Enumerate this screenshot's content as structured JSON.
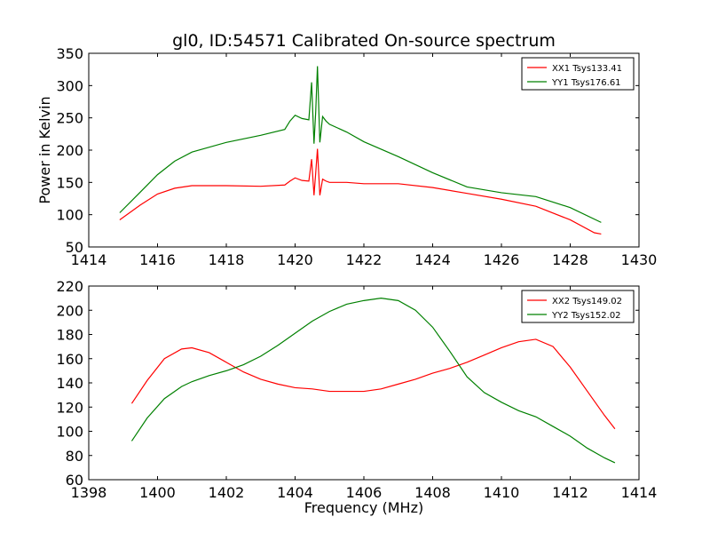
{
  "figure": {
    "title": "gl0, ID:54571 Calibrated On-source spectrum",
    "ylabel": "Power in Kelvin",
    "xlabel": "Frequency (MHz)"
  },
  "colors": {
    "red": "#ff0000",
    "green": "#008000"
  },
  "chart_data": [
    {
      "type": "line",
      "title": "gl0, ID:54571 Calibrated On-source spectrum",
      "xlabel": "",
      "ylabel": "Power in Kelvin",
      "xlim": [
        1414,
        1430
      ],
      "ylim": [
        50,
        350
      ],
      "xticks": [
        1414,
        1416,
        1418,
        1420,
        1422,
        1424,
        1426,
        1428,
        1430
      ],
      "yticks": [
        50,
        100,
        150,
        200,
        250,
        300,
        350
      ],
      "grid": false,
      "legend": "top-right",
      "series": [
        {
          "name": "XX1 Tsys133.41",
          "color": "red",
          "x": [
            1414.9,
            1415.5,
            1416.0,
            1416.5,
            1417.0,
            1418.0,
            1419.0,
            1419.7,
            1419.85,
            1420.0,
            1420.2,
            1420.4,
            1420.48,
            1420.55,
            1420.6,
            1420.65,
            1420.72,
            1420.8,
            1420.9,
            1421.0,
            1421.5,
            1422.0,
            1423.0,
            1424.0,
            1425.0,
            1426.0,
            1427.0,
            1428.0,
            1428.7,
            1428.9
          ],
          "y": [
            92,
            115,
            132,
            141,
            145,
            145,
            144,
            146,
            152,
            157,
            153,
            152,
            186,
            130,
            165,
            202,
            130,
            155,
            152,
            150,
            150,
            148,
            148,
            142,
            133,
            124,
            113,
            92,
            72,
            70
          ]
        },
        {
          "name": "YY1 Tsys176.61",
          "color": "green",
          "x": [
            1414.9,
            1415.5,
            1416.0,
            1416.5,
            1417.0,
            1418.0,
            1419.0,
            1419.7,
            1419.85,
            1420.0,
            1420.2,
            1420.4,
            1420.48,
            1420.55,
            1420.6,
            1420.65,
            1420.72,
            1420.8,
            1420.9,
            1421.0,
            1421.5,
            1422.0,
            1423.0,
            1424.0,
            1425.0,
            1426.0,
            1427.0,
            1428.0,
            1428.9
          ],
          "y": [
            103,
            135,
            162,
            183,
            197,
            212,
            223,
            232,
            245,
            254,
            249,
            247,
            305,
            210,
            260,
            330,
            212,
            252,
            245,
            240,
            228,
            213,
            190,
            165,
            143,
            134,
            128,
            111,
            88
          ]
        }
      ]
    },
    {
      "type": "line",
      "title": "",
      "xlabel": "Frequency (MHz)",
      "ylabel": "",
      "xlim": [
        1398,
        1414
      ],
      "ylim": [
        60,
        220
      ],
      "xticks": [
        1398,
        1400,
        1402,
        1404,
        1406,
        1408,
        1410,
        1412,
        1414
      ],
      "yticks": [
        60,
        80,
        100,
        120,
        140,
        160,
        180,
        200,
        220
      ],
      "grid": false,
      "legend": "top-right",
      "series": [
        {
          "name": "XX2 Tsys149.02",
          "color": "red",
          "x": [
            1399.25,
            1399.7,
            1400.2,
            1400.7,
            1401.0,
            1401.5,
            1402.0,
            1402.5,
            1403.0,
            1403.5,
            1404.0,
            1404.5,
            1405.0,
            1405.5,
            1406.0,
            1406.5,
            1407.0,
            1407.5,
            1408.0,
            1408.5,
            1409.0,
            1409.5,
            1410.0,
            1410.5,
            1411.0,
            1411.5,
            1412.0,
            1412.5,
            1413.0,
            1413.3
          ],
          "y": [
            123,
            142,
            160,
            168,
            169,
            165,
            157,
            149,
            143,
            139,
            136,
            135,
            133,
            133,
            133,
            135,
            139,
            143,
            148,
            152,
            157,
            163,
            169,
            174,
            176,
            170,
            153,
            133,
            113,
            102
          ]
        },
        {
          "name": "YY2 Tsys152.02",
          "color": "green",
          "x": [
            1399.25,
            1399.7,
            1400.2,
            1400.7,
            1401.0,
            1401.5,
            1402.0,
            1402.5,
            1403.0,
            1403.5,
            1404.0,
            1404.5,
            1405.0,
            1405.5,
            1406.0,
            1406.5,
            1407.0,
            1407.5,
            1408.0,
            1408.5,
            1409.0,
            1409.5,
            1410.0,
            1410.5,
            1411.0,
            1411.5,
            1412.0,
            1412.5,
            1413.0,
            1413.3
          ],
          "y": [
            92,
            111,
            127,
            137,
            141,
            146,
            150,
            155,
            162,
            171,
            181,
            191,
            199,
            205,
            208,
            210,
            208,
            200,
            186,
            166,
            145,
            132,
            124,
            117,
            112,
            104,
            96,
            86,
            78,
            74
          ]
        }
      ]
    }
  ]
}
